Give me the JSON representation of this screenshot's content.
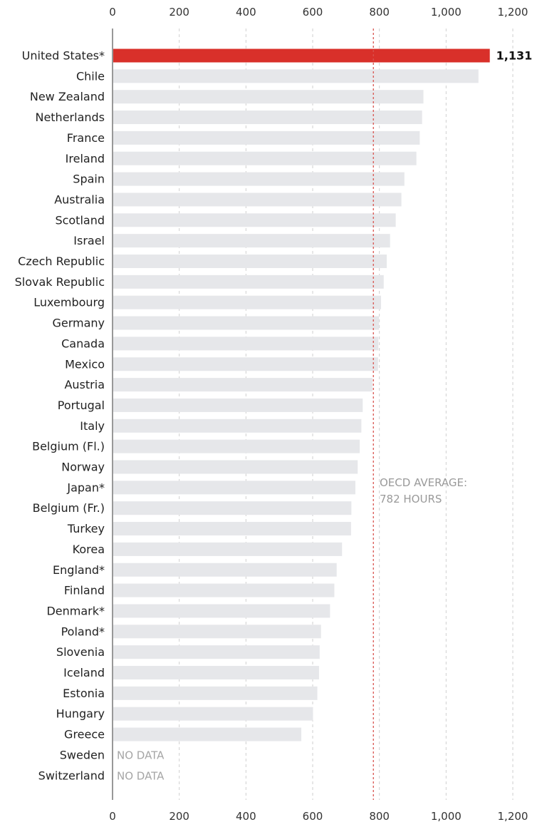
{
  "chart_data": {
    "type": "bar",
    "orientation": "horizontal",
    "xlim": [
      0,
      1200
    ],
    "x_ticks": [
      0,
      200,
      400,
      600,
      800,
      1000,
      1200
    ],
    "x_tick_labels": [
      "0",
      "200",
      "400",
      "600",
      "800",
      "1,000",
      "1,200"
    ],
    "categories": [
      "United States*",
      "Chile",
      "New Zealand",
      "Netherlands",
      "France",
      "Ireland",
      "Spain",
      "Australia",
      "Scotland",
      "Israel",
      "Czech Republic",
      "Slovak Republic",
      "Luxembourg",
      "Germany",
      "Canada",
      "Mexico",
      "Austria",
      "Portugal",
      "Italy",
      "Belgium (Fl.)",
      "Norway",
      "Japan*",
      "Belgium (Fr.)",
      "Turkey",
      "Korea",
      "England*",
      "Finland",
      "Denmark*",
      "Poland*",
      "Slovenia",
      "Iceland",
      "Estonia",
      "Hungary",
      "Greece",
      "Sweden",
      "Switzerland"
    ],
    "values": [
      1131,
      1097,
      932,
      928,
      921,
      911,
      875,
      866,
      849,
      832,
      822,
      813,
      805,
      799,
      797,
      796,
      779,
      750,
      746,
      741,
      735,
      728,
      716,
      715,
      688,
      672,
      665,
      652,
      625,
      621,
      619,
      614,
      601,
      566,
      null,
      null
    ],
    "highlight": {
      "category": "United States*",
      "value": 1131,
      "label": "1,131",
      "color": "#d9302a"
    },
    "bar_color": "#e6e7ea",
    "no_data_label": "NO DATA",
    "reference_line": {
      "value": 782,
      "label_line1": "OECD AVERAGE:",
      "label_line2": "782 HOURS",
      "color": "#d9534f"
    },
    "grid": true,
    "title": "",
    "xlabel": "",
    "ylabel": ""
  }
}
